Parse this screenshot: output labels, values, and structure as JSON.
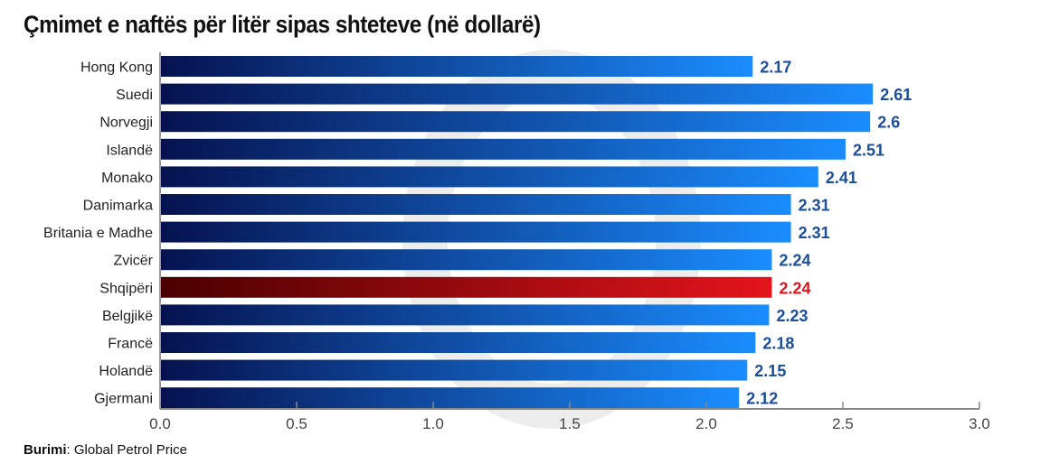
{
  "title": "Çmimet e naftës për litër sipas shteteve (në dollarë)",
  "source": {
    "label": "Burimi",
    "text": "Global Petrol Price"
  },
  "colors": {
    "bar_start": "#06124f",
    "bar_end": "#1a8dff",
    "highlight_start": "#4a0000",
    "highlight_end": "#e5141c",
    "label": "#1c4e98",
    "highlight_label": "#e0141b"
  },
  "chart_data": {
    "type": "bar",
    "orientation": "horizontal",
    "title": "Çmimet e naftës për litër sipas shteteve (në dollarë)",
    "xlabel": "",
    "ylabel": "",
    "xlim": [
      0,
      3.0
    ],
    "xticks": [
      "0.0",
      "0.5",
      "1.0",
      "1.5",
      "2.0",
      "2.5",
      "3.0"
    ],
    "categories": [
      "Hong Kong",
      "Suedi",
      "Norvegji",
      "Islandë",
      "Monako",
      "Danimarka",
      "Britania e Madhe",
      "Zvicër",
      "Shqipëri",
      "Belgjikë",
      "Francë",
      "Holandë",
      "Gjermani"
    ],
    "values": [
      2.17,
      2.61,
      2.6,
      2.51,
      2.41,
      2.31,
      2.31,
      2.24,
      2.24,
      2.23,
      2.18,
      2.15,
      2.12
    ],
    "value_labels": [
      "2.17",
      "2.61",
      "2.6",
      "2.51",
      "2.41",
      "2.31",
      "2.31",
      "2.24",
      "2.24",
      "2.23",
      "2.18",
      "2.15",
      "2.12"
    ],
    "highlight": "Shqipëri",
    "grid": false
  }
}
